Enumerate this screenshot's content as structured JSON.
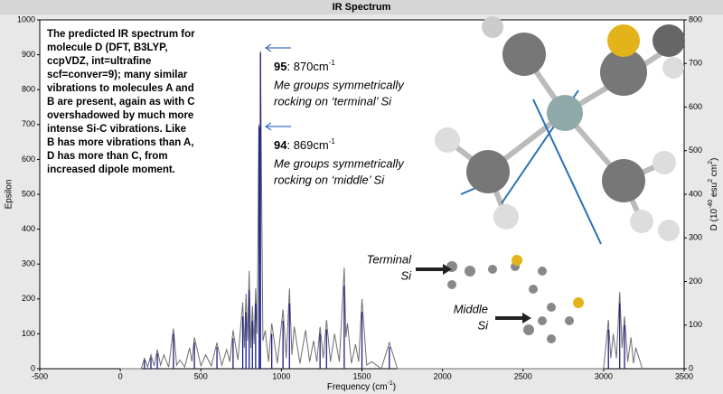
{
  "chart_data": {
    "type": "spectrum",
    "title": "IR Spectrum",
    "x_label": {
      "text": "Frequency (cm",
      "sup": "-1",
      "end": ")"
    },
    "y_label": "Epsilon",
    "y2_label": [
      {
        "t": "D (10"
      },
      {
        "t": "-40",
        "sup": true
      },
      {
        "t": " esu"
      },
      {
        "t": "2",
        "sup": true
      },
      {
        "t": " cm"
      },
      {
        "t": "2",
        "sup": true
      },
      {
        "t": ")"
      }
    ],
    "xlim": [
      -500,
      3500
    ],
    "xticks": [
      -500,
      0,
      500,
      1000,
      1500,
      2000,
      2500,
      3000,
      3500
    ],
    "ylim": [
      0,
      1000
    ],
    "yticks": [
      0,
      100,
      200,
      300,
      400,
      500,
      600,
      700,
      800,
      900,
      1000
    ],
    "y2lim": [
      0,
      800
    ],
    "y2ticks": [
      0,
      100,
      200,
      300,
      400,
      500,
      600,
      700,
      800
    ],
    "series": [
      {
        "name": "Epsilon",
        "color": "#6e6e6e",
        "x": [
          0,
          130,
          150,
          170,
          190,
          210,
          230,
          250,
          270,
          300,
          330,
          350,
          370,
          400,
          430,
          445,
          460,
          500,
          530,
          565,
          600,
          630,
          660,
          680,
          700,
          730,
          760,
          770,
          780,
          790,
          800,
          810,
          820,
          830,
          840,
          850,
          860,
          865,
          870,
          885,
          900,
          920,
          940,
          975,
          1010,
          1030,
          1050,
          1065,
          1080,
          1115,
          1150,
          1175,
          1200,
          1220,
          1240,
          1260,
          1280,
          1305,
          1330,
          1360,
          1390,
          1400,
          1410,
          1435,
          1460,
          1480,
          1500,
          1530,
          1560,
          1620,
          1670,
          1720,
          3000,
          3030,
          3045,
          3060,
          3080,
          3100,
          3115,
          3130,
          3150,
          3170,
          3185,
          3200,
          3240
        ],
        "values": [
          0,
          0,
          30,
          5,
          40,
          8,
          55,
          10,
          40,
          5,
          115,
          10,
          25,
          5,
          60,
          20,
          90,
          8,
          40,
          8,
          75,
          10,
          55,
          20,
          110,
          25,
          190,
          60,
          215,
          80,
          280,
          60,
          180,
          70,
          230,
          100,
          700,
          300,
          910,
          80,
          110,
          20,
          130,
          15,
          170,
          30,
          230,
          40,
          120,
          15,
          110,
          20,
          80,
          20,
          120,
          30,
          140,
          20,
          100,
          20,
          290,
          90,
          130,
          15,
          70,
          20,
          200,
          10,
          20,
          0,
          75,
          0,
          0,
          140,
          30,
          100,
          30,
          220,
          60,
          150,
          20,
          90,
          15,
          60,
          0
        ]
      },
      {
        "name": "D",
        "color": "#1c1c8a",
        "axis": "y2",
        "x": [
          150,
          190,
          230,
          330,
          460,
          600,
          700,
          760,
          780,
          800,
          820,
          840,
          862,
          870,
          940,
          1010,
          1050,
          1240,
          1280,
          1390,
          1500,
          1670,
          3030,
          3100,
          3130
        ],
        "values": [
          20,
          25,
          35,
          80,
          60,
          50,
          70,
          120,
          130,
          180,
          110,
          150,
          555,
          725,
          80,
          110,
          150,
          80,
          90,
          190,
          130,
          50,
          90,
          150,
          100
        ]
      }
    ],
    "description": [
      "The predicted IR spectrum for",
      "molecule D (DFT, B3LYP,",
      "ccpVDZ, int=ultrafine",
      "scf=conver=9); many similar",
      "vibrations to molecules A and",
      "B are present, again as with C",
      "overshadowed by much more",
      "intense Si-C vibrations. Like",
      "B has more vibrations than A,",
      "D has more than C, from",
      "increased dipole moment."
    ],
    "annotations": [
      {
        "bold": "95",
        "text": ": 870cm",
        "sup": "-1",
        "lines": [
          "Me groups symmetrically",
          "rocking on ‘terminal’ Si"
        ]
      },
      {
        "bold": "94",
        "text": ": 869cm",
        "sup": "-1",
        "lines": [
          "Me groups symmetrically",
          "rocking on ‘middle’ Si"
        ]
      }
    ],
    "atom_labels": [
      [
        "Terminal",
        "Si"
      ],
      [
        "Middle",
        "Si"
      ]
    ]
  }
}
